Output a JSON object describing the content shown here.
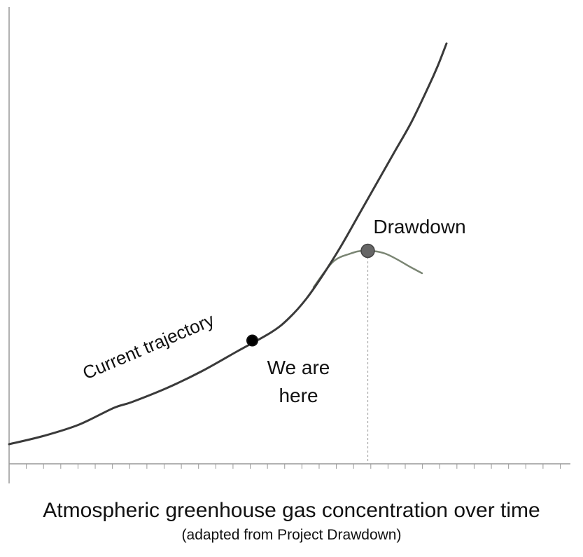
{
  "chart_data": {
    "type": "line",
    "title": "Atmospheric greenhouse gas concentration over time",
    "subtitle": "(adapted from Project Drawdown)",
    "grid": false,
    "x_tick_count": 32,
    "series": [
      {
        "name": "Current trajectory",
        "color": "#3a3a3a",
        "points": [
          [
            0,
            0.07
          ],
          [
            2,
            0.1
          ],
          [
            4,
            0.14
          ],
          [
            6,
            0.2
          ],
          [
            7,
            0.22
          ],
          [
            9,
            0.27
          ],
          [
            11,
            0.33
          ],
          [
            13,
            0.4
          ],
          [
            15,
            0.47
          ],
          [
            16,
            0.52
          ],
          [
            17,
            0.59
          ],
          [
            18,
            0.68
          ],
          [
            19,
            0.78
          ],
          [
            20,
            0.89
          ],
          [
            21,
            1.0
          ],
          [
            22,
            1.11
          ],
          [
            23,
            1.22
          ],
          [
            24,
            1.35
          ],
          [
            24.5,
            1.42
          ],
          [
            25,
            1.5
          ]
        ]
      },
      {
        "name": "Drawdown",
        "color": "#7a8573",
        "points": [
          [
            17.4,
            0.63
          ],
          [
            18.5,
            0.72
          ],
          [
            19.5,
            0.75
          ],
          [
            20.3,
            0.76
          ],
          [
            21.5,
            0.75
          ],
          [
            23,
            0.7
          ],
          [
            23.6,
            0.68
          ]
        ]
      }
    ],
    "markers": [
      {
        "label_line1": "We are",
        "label_line2": "here",
        "x": 13.9,
        "y": 0.44,
        "color": "#000000"
      },
      {
        "label": "Drawdown",
        "x": 20.5,
        "y": 0.76,
        "color": "#666666",
        "dropline": true
      }
    ]
  }
}
